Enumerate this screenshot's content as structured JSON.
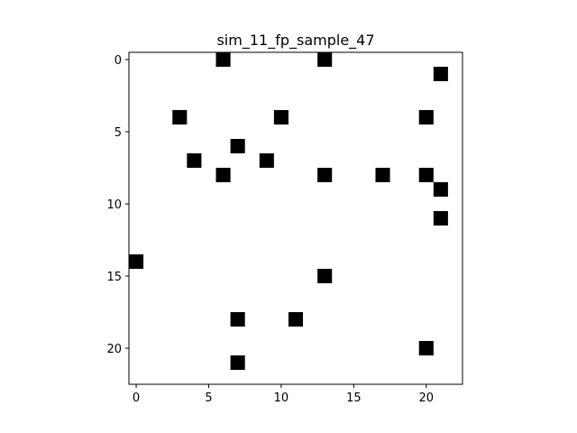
{
  "chart_data": {
    "type": "heatmap",
    "title": "sim_11_fp_sample_47",
    "xlabel": "",
    "ylabel": "",
    "xlim": [
      -0.5,
      22.5
    ],
    "ylim": [
      22.5,
      -0.5
    ],
    "y_inverted": true,
    "x_ticks": [
      0,
      5,
      10,
      15,
      20
    ],
    "y_ticks": [
      0,
      5,
      10,
      15,
      20
    ],
    "grid": false,
    "cell_color": "#000000",
    "background_color": "#ffffff",
    "cells": [
      {
        "x": 6,
        "y": 0
      },
      {
        "x": 13,
        "y": 0
      },
      {
        "x": 21,
        "y": 1
      },
      {
        "x": 3,
        "y": 4
      },
      {
        "x": 10,
        "y": 4
      },
      {
        "x": 20,
        "y": 4
      },
      {
        "x": 7,
        "y": 6
      },
      {
        "x": 4,
        "y": 7
      },
      {
        "x": 9,
        "y": 7
      },
      {
        "x": 6,
        "y": 8
      },
      {
        "x": 13,
        "y": 8
      },
      {
        "x": 17,
        "y": 8
      },
      {
        "x": 20,
        "y": 8
      },
      {
        "x": 21,
        "y": 9
      },
      {
        "x": 21,
        "y": 11
      },
      {
        "x": 0,
        "y": 14
      },
      {
        "x": 13,
        "y": 15
      },
      {
        "x": 7,
        "y": 18
      },
      {
        "x": 11,
        "y": 18
      },
      {
        "x": 20,
        "y": 20
      },
      {
        "x": 7,
        "y": 21
      }
    ]
  }
}
